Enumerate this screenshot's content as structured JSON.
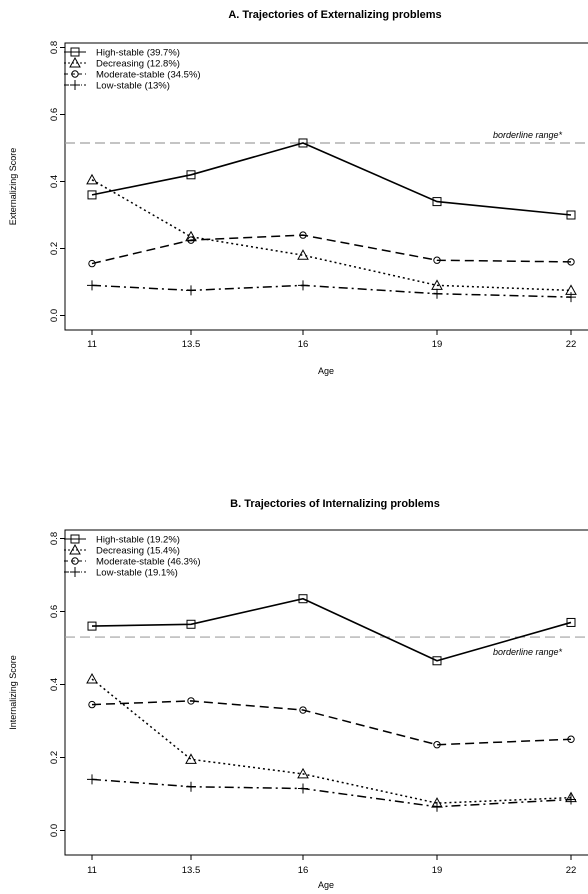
{
  "chart_data": [
    {
      "type": "line",
      "title": "A. Trajectories of Externalizing problems",
      "xlabel": "Age",
      "ylabel": "Externalizing Score",
      "x": [
        11,
        13.5,
        16,
        19,
        22
      ],
      "x_tick_labels": [
        "11",
        "13.5",
        "16",
        "19",
        "22"
      ],
      "ylim": [
        0,
        0.8
      ],
      "y_ticks": [
        0.0,
        0.2,
        0.4,
        0.6,
        0.8
      ],
      "y_tick_labels": [
        "0.0",
        "0.2",
        "0.4",
        "0.6",
        "0.8"
      ],
      "grid": false,
      "legend_position": "top-left",
      "reference_line": {
        "y": 0.515,
        "label": "borderline range*",
        "color": "#a0a0a0",
        "style": "dashed"
      },
      "series": [
        {
          "name": "High-stable (39.7%)",
          "values": [
            0.36,
            0.42,
            0.515,
            0.34,
            0.3
          ],
          "line_style": "solid",
          "marker": "square"
        },
        {
          "name": "Decreasing (12.8%)",
          "values": [
            0.405,
            0.235,
            0.18,
            0.09,
            0.075
          ],
          "line_style": "dotted",
          "marker": "triangle"
        },
        {
          "name": "Moderate-stable (34.5%)",
          "values": [
            0.155,
            0.225,
            0.24,
            0.165,
            0.16
          ],
          "line_style": "dashed",
          "marker": "circle"
        },
        {
          "name": "Low-stable (13%)",
          "values": [
            0.09,
            0.075,
            0.09,
            0.065,
            0.055
          ],
          "line_style": "dashdot",
          "marker": "plus"
        }
      ]
    },
    {
      "type": "line",
      "title": "B. Trajectories of Internalizing problems",
      "xlabel": "Age",
      "ylabel": "Internalizing Score",
      "x": [
        11,
        13.5,
        16,
        19,
        22
      ],
      "x_tick_labels": [
        "11",
        "13.5",
        "16",
        "19",
        "22"
      ],
      "ylim": [
        0,
        0.8
      ],
      "y_ticks": [
        0.0,
        0.2,
        0.4,
        0.6,
        0.8
      ],
      "y_tick_labels": [
        "0.0",
        "0.2",
        "0.4",
        "0.6",
        "0.8"
      ],
      "grid": false,
      "legend_position": "top-left",
      "reference_line": {
        "y": 0.53,
        "label": "borderline range*",
        "color": "#a0a0a0",
        "style": "dashed"
      },
      "series": [
        {
          "name": "High-stable (19.2%)",
          "values": [
            0.56,
            0.565,
            0.635,
            0.465,
            0.57
          ],
          "line_style": "solid",
          "marker": "square"
        },
        {
          "name": "Decreasing (15.4%)",
          "values": [
            0.415,
            0.195,
            0.155,
            0.075,
            0.09
          ],
          "line_style": "dotted",
          "marker": "triangle"
        },
        {
          "name": "Moderate-stable (46.3%)",
          "values": [
            0.345,
            0.355,
            0.33,
            0.235,
            0.25
          ],
          "line_style": "dashed",
          "marker": "circle"
        },
        {
          "name": "Low-stable (19.1%)",
          "values": [
            0.14,
            0.12,
            0.115,
            0.065,
            0.085
          ],
          "line_style": "dashdot",
          "marker": "plus"
        }
      ]
    }
  ]
}
